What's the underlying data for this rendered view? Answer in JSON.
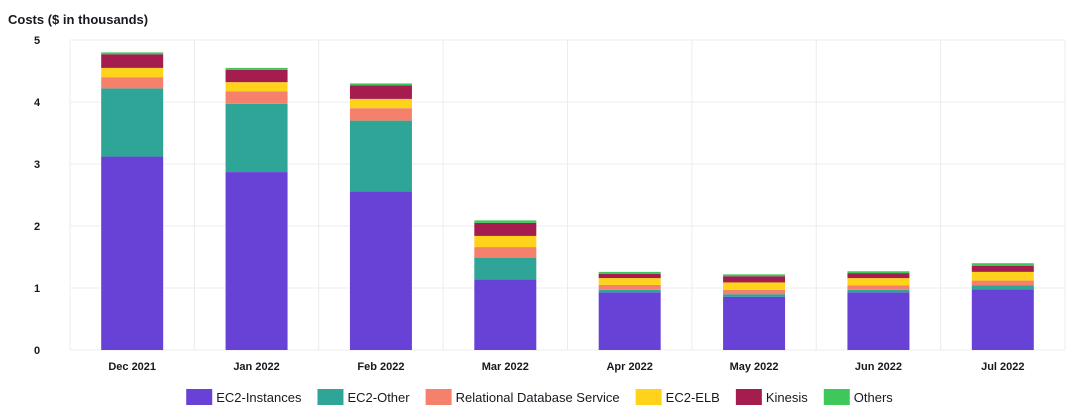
{
  "chart_data": {
    "type": "bar",
    "stacked": true,
    "title": "",
    "ylabel": "Costs ($ in thousands)",
    "xlabel": "",
    "ylim": [
      0,
      5
    ],
    "yticks": [
      0,
      1,
      2,
      3,
      4,
      5
    ],
    "grid": true,
    "legend_position": "bottom",
    "categories": [
      "Dec 2021",
      "Jan 2022",
      "Feb 2022",
      "Mar 2022",
      "Apr 2022",
      "May 2022",
      "Jun 2022",
      "Jul 2022"
    ],
    "series": [
      {
        "name": "EC2-Instances",
        "color": "#6842d6",
        "values": [
          3.12,
          2.87,
          2.56,
          1.14,
          0.93,
          0.86,
          0.93,
          0.98
        ]
      },
      {
        "name": "EC2-Other",
        "color": "#2ea597",
        "values": [
          1.1,
          1.1,
          1.14,
          0.35,
          0.04,
          0.04,
          0.04,
          0.06
        ]
      },
      {
        "name": "Relational Database Service",
        "color": "#f5806c",
        "values": [
          0.18,
          0.2,
          0.2,
          0.17,
          0.08,
          0.07,
          0.07,
          0.08
        ]
      },
      {
        "name": "EC2-ELB",
        "color": "#ffd21c",
        "values": [
          0.15,
          0.15,
          0.15,
          0.18,
          0.11,
          0.12,
          0.12,
          0.14
        ]
      },
      {
        "name": "Kinesis",
        "color": "#a51c4f",
        "values": [
          0.22,
          0.2,
          0.22,
          0.21,
          0.07,
          0.1,
          0.08,
          0.1
        ]
      },
      {
        "name": "Others",
        "color": "#3ec85c",
        "values": [
          0.03,
          0.03,
          0.03,
          0.04,
          0.03,
          0.03,
          0.03,
          0.04
        ]
      }
    ]
  }
}
